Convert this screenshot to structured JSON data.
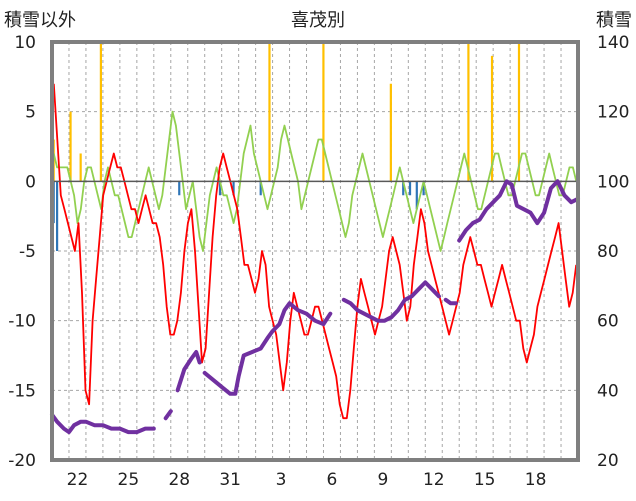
{
  "chart_data": {
    "type": "line",
    "title": "喜茂別",
    "left_axis_label": "積雪以外",
    "right_axis_label": "積雪",
    "ylim_left": [
      -20,
      10
    ],
    "yticks_left": [
      "10",
      "5",
      "0",
      "-5",
      "-10",
      "-15",
      "-20"
    ],
    "ylim_right": [
      20,
      140
    ],
    "yticks_right": [
      "140",
      "120",
      "100",
      "80",
      "60",
      "40",
      "20"
    ],
    "x_ticks": [
      "22",
      "25",
      "28",
      "31",
      "3",
      "6",
      "9",
      "12",
      "15",
      "18"
    ],
    "grid": true,
    "colors": {
      "temperature": "#ff0000",
      "sunshine": "#92d050",
      "precipitation": "#ffc000",
      "snow_change": "#2e75b6",
      "snow_depth": "#7030a0",
      "frame": "#7f7f7f"
    },
    "series": [
      {
        "key": "temperature",
        "values": [
          7,
          3,
          -1,
          -2,
          -3,
          -4,
          -5,
          -3,
          -8,
          -15,
          -16,
          -10,
          -7,
          -4,
          -1,
          0,
          1,
          2,
          1,
          1,
          0,
          -1,
          -2,
          -2,
          -3,
          -2,
          -1,
          -2,
          -3,
          -3,
          -4,
          -6,
          -9,
          -11,
          -11,
          -10,
          -8,
          -5,
          -3,
          -2,
          -5,
          -9,
          -13,
          -12,
          -8,
          -4,
          -1,
          1,
          2,
          1,
          0,
          -1,
          -2,
          -4,
          -6,
          -6,
          -7,
          -8,
          -7,
          -5,
          -6,
          -9,
          -10,
          -11,
          -13,
          -15,
          -13,
          -10,
          -8,
          -9,
          -10,
          -11,
          -11,
          -10,
          -9,
          -9,
          -10,
          -11,
          -12,
          -13,
          -14,
          -16,
          -17,
          -17,
          -15,
          -12,
          -9,
          -7,
          -8,
          -9,
          -10,
          -11,
          -10,
          -9,
          -7,
          -5,
          -4,
          -5,
          -6,
          -8,
          -10,
          -9,
          -6,
          -4,
          -2,
          -3,
          -5,
          -6,
          -7,
          -8,
          -9,
          -10,
          -11,
          -10,
          -9,
          -8,
          -6,
          -5,
          -4,
          -5,
          -6,
          -6,
          -7,
          -8,
          -9,
          -8,
          -7,
          -6,
          -7,
          -8,
          -9,
          -10,
          -10,
          -12,
          -13,
          -12,
          -11,
          -9,
          -8,
          -7,
          -6,
          -5,
          -4,
          -3,
          -5,
          -7,
          -9,
          -8,
          -6
        ]
      },
      {
        "key": "sunshine",
        "values": [
          2,
          1,
          1,
          1,
          1,
          0,
          -1,
          -3,
          -2,
          0,
          1,
          1,
          0,
          -1,
          -2,
          0,
          1,
          0,
          -1,
          -1,
          -2,
          -3,
          -4,
          -4,
          -3,
          -2,
          -1,
          0,
          1,
          0,
          -1,
          -2,
          -1,
          1,
          3,
          5,
          4,
          2,
          0,
          -2,
          -1,
          0,
          -2,
          -4,
          -5,
          -3,
          -1,
          0,
          1,
          0,
          -1,
          -1,
          -2,
          -3,
          -2,
          0,
          2,
          3,
          4,
          2,
          1,
          0,
          -1,
          -2,
          -1,
          0,
          1,
          3,
          4,
          3,
          2,
          1,
          0,
          -2,
          -1,
          0,
          1,
          2,
          3,
          3,
          2,
          1,
          0,
          -1,
          -2,
          -3,
          -4,
          -3,
          -1,
          0,
          1,
          2,
          1,
          0,
          -1,
          -2,
          -3,
          -4,
          -3,
          -2,
          -1,
          0,
          1,
          0,
          -1,
          -2,
          -3,
          -2,
          -1,
          0,
          -1,
          -2,
          -3,
          -4,
          -5,
          -4,
          -3,
          -2,
          -1,
          0,
          1,
          2,
          1,
          0,
          -1,
          -2,
          -2,
          -1,
          0,
          1,
          2,
          2,
          1,
          0,
          -1,
          -1,
          0,
          1,
          2,
          2,
          1,
          0,
          -1,
          -1,
          0,
          1,
          2,
          1,
          0,
          -1,
          -1,
          0,
          1,
          1,
          0
        ]
      },
      {
        "key": "precipitation",
        "values": [
          3,
          0,
          0,
          0,
          0,
          5,
          0,
          0,
          2,
          0,
          0,
          0,
          0,
          0,
          10,
          0,
          0,
          0,
          0,
          0,
          0,
          0,
          0,
          0,
          0,
          0,
          0,
          0,
          0,
          0,
          0,
          0,
          0,
          0,
          0,
          0,
          0,
          0,
          0,
          0,
          0,
          0,
          0,
          0,
          0,
          0,
          0,
          0,
          0,
          0,
          0,
          0,
          0,
          0,
          0,
          0,
          0,
          0,
          0,
          0,
          0,
          0,
          0,
          0,
          10,
          0,
          0,
          0,
          0,
          0,
          0,
          0,
          0,
          0,
          0,
          0,
          0,
          0,
          0,
          0,
          10,
          0,
          0,
          0,
          0,
          0,
          0,
          0,
          0,
          0,
          0,
          0,
          0,
          0,
          0,
          0,
          0,
          0,
          0,
          0,
          7,
          0,
          0,
          0,
          0,
          0,
          0,
          0,
          0,
          0,
          0,
          0,
          0,
          0,
          0,
          0,
          0,
          0,
          0,
          0,
          0,
          0,
          0,
          10,
          0,
          0,
          0,
          0,
          0,
          0,
          9,
          0,
          0,
          0,
          0,
          0,
          0,
          0,
          10,
          0,
          0,
          0,
          0,
          0,
          0,
          0,
          0,
          0,
          0,
          0,
          0,
          0,
          0,
          0,
          0,
          0
        ]
      },
      {
        "key": "snow_change",
        "values": [
          -3,
          -5,
          0,
          0,
          0,
          0,
          0,
          0,
          0,
          0,
          0,
          0,
          0,
          0,
          0,
          0,
          0,
          0,
          0,
          0,
          0,
          0,
          0,
          0,
          0,
          0,
          0,
          0,
          0,
          0,
          0,
          0,
          0,
          0,
          0,
          0,
          0,
          -1,
          0,
          0,
          0,
          0,
          0,
          0,
          0,
          0,
          0,
          0,
          0,
          -1,
          0,
          0,
          0,
          -1,
          0,
          0,
          0,
          0,
          0,
          0,
          0,
          -1,
          0,
          0,
          0,
          0,
          0,
          0,
          0,
          0,
          0,
          0,
          0,
          0,
          0,
          0,
          0,
          0,
          0,
          0,
          0,
          0,
          0,
          0,
          0,
          0,
          0,
          0,
          0,
          0,
          0,
          0,
          0,
          0,
          0,
          0,
          0,
          0,
          0,
          0,
          0,
          0,
          0,
          -1,
          0,
          -1,
          0,
          -2,
          0,
          -1,
          0,
          0,
          0,
          0,
          0,
          0,
          0,
          0,
          0,
          0,
          0,
          0,
          0,
          0,
          0,
          0,
          0,
          0,
          0,
          0,
          0,
          0,
          0,
          0,
          0,
          0,
          0,
          0,
          0,
          0,
          0,
          0,
          0,
          0,
          0,
          0,
          0,
          0,
          0,
          0,
          0,
          0,
          0,
          0,
          0
        ]
      },
      {
        "key": "snow_depth",
        "segments": [
          [
            [
              0.0,
              33
            ],
            [
              0.3,
              31
            ],
            [
              0.7,
              29
            ],
            [
              1.0,
              28
            ],
            [
              1.3,
              30
            ],
            [
              1.7,
              31
            ],
            [
              2.0,
              31
            ],
            [
              2.5,
              30
            ],
            [
              3.0,
              30
            ],
            [
              3.5,
              29
            ],
            [
              4.0,
              29
            ],
            [
              4.5,
              28
            ],
            [
              5.0,
              28
            ],
            [
              5.5,
              29
            ],
            [
              6.0,
              29
            ]
          ],
          [
            [
              6.7,
              32
            ],
            [
              7.0,
              34
            ]
          ],
          [
            [
              7.4,
              40
            ],
            [
              7.8,
              46
            ],
            [
              8.2,
              49
            ],
            [
              8.5,
              51
            ],
            [
              8.7,
              48
            ]
          ],
          [
            [
              9.0,
              45
            ],
            [
              9.5,
              43
            ],
            [
              10.0,
              41
            ],
            [
              10.5,
              39
            ],
            [
              10.8,
              39
            ],
            [
              11.0,
              44
            ],
            [
              11.3,
              50
            ],
            [
              11.8,
              51
            ],
            [
              12.3,
              52
            ],
            [
              12.7,
              55
            ],
            [
              13.0,
              57
            ],
            [
              13.4,
              59
            ],
            [
              13.7,
              63
            ],
            [
              14.0,
              65
            ],
            [
              14.5,
              63
            ],
            [
              15.0,
              62
            ],
            [
              15.5,
              60
            ],
            [
              16.0,
              59
            ],
            [
              16.4,
              62
            ]
          ],
          [
            [
              17.2,
              66
            ],
            [
              17.6,
              65
            ],
            [
              18.0,
              63
            ],
            [
              18.4,
              62
            ],
            [
              18.8,
              61
            ],
            [
              19.2,
              60
            ],
            [
              19.6,
              60
            ],
            [
              20.0,
              61
            ],
            [
              20.4,
              63
            ],
            [
              20.8,
              66
            ],
            [
              21.2,
              67
            ],
            [
              21.6,
              69
            ],
            [
              22.0,
              71
            ],
            [
              22.4,
              69
            ],
            [
              22.8,
              67
            ]
          ],
          [
            [
              23.2,
              66
            ],
            [
              23.5,
              65
            ],
            [
              23.8,
              65
            ]
          ],
          [
            [
              24.0,
              83
            ],
            [
              24.4,
              86
            ],
            [
              24.8,
              88
            ],
            [
              25.2,
              89
            ],
            [
              25.6,
              92
            ],
            [
              26.0,
              94
            ],
            [
              26.4,
              96
            ],
            [
              26.8,
              100
            ],
            [
              27.1,
              99
            ],
            [
              27.4,
              93
            ],
            [
              27.8,
              92
            ],
            [
              28.2,
              91
            ],
            [
              28.6,
              88
            ],
            [
              29.0,
              91
            ],
            [
              29.4,
              98
            ],
            [
              29.8,
              100
            ],
            [
              30.2,
              96
            ],
            [
              30.6,
              94
            ],
            [
              31.0,
              95
            ]
          ]
        ]
      }
    ]
  }
}
